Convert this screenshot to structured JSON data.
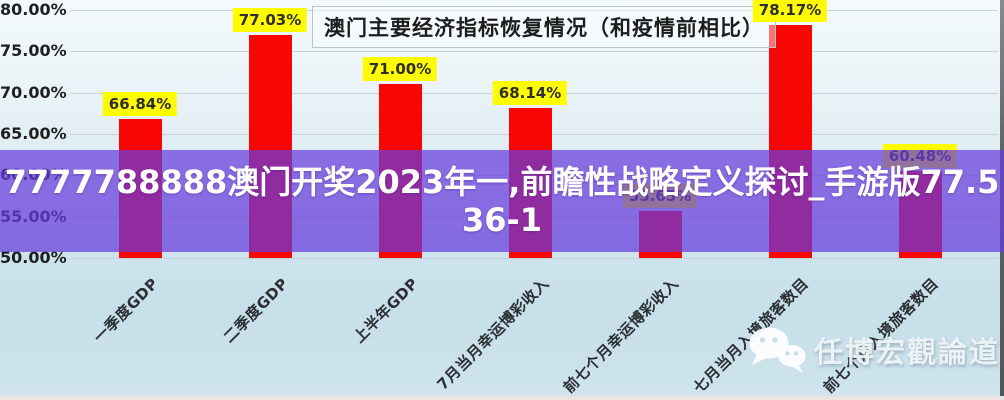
{
  "title": "澳门主要经济指标恢复情况（和疫情前相比）",
  "overlay_banner": {
    "line1": "7777788888澳门开奖2023年一,前瞻性战略定义探讨_手游版77.5",
    "line2": "36-1"
  },
  "watermark": {
    "icon": "wechat-icon",
    "text": "任博宏觀論道"
  },
  "colors": {
    "bar": "#f90504",
    "data_label_bg": "#fffb00",
    "banner_overlay": "rgba(104,60,221,0.72)",
    "banner_text": "#ffffff",
    "gridline": "#c4cdd3"
  },
  "chart_data": {
    "type": "bar",
    "title": "澳门主要经济指标恢复情况（和疫情前相比）",
    "categories": [
      "一季度GDP",
      "二季度GDP",
      "上半年GDP",
      "7月当月幸运博彩收入",
      "前七个月幸运博彩收入",
      "七月当月入境旅客数目",
      "前七个月入境旅客数目"
    ],
    "values": [
      66.84,
      77.03,
      71.0,
      68.14,
      55.65,
      78.17,
      60.48
    ],
    "data_labels": [
      "66.84%",
      "77.03%",
      "71.00%",
      "68.14%",
      "55.65%",
      "78.17%",
      "60.48%"
    ],
    "y_ticks": {
      "labels": [
        "80.00%",
        "75.00%",
        "70.00%",
        "65.00%",
        "60.00%",
        "55.00%",
        "50.00%"
      ],
      "values": [
        80,
        75,
        70,
        65,
        60,
        55,
        50
      ]
    },
    "ylim": [
      50,
      80
    ],
    "xlabel": "",
    "ylabel": "",
    "grid": true,
    "legend": false,
    "x_tick_rotation_deg": -45
  }
}
